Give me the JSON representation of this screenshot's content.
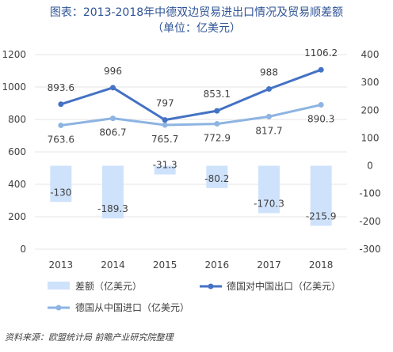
{
  "title": "图表：2013-2018年中德双边贸易进出口情况及贸易顺差额",
  "subtitle": "（单位：亿美元）",
  "source": "资料来源：欧盟统计局 前瞻产业研究院整理",
  "colors": {
    "title": "#2f5496",
    "bar": "#cfe2fc",
    "export_line": "#4472c4",
    "import_line": "#8db4e2",
    "text": "#404040",
    "grid": "#e4e4e4"
  },
  "chart_data": {
    "type": "bar+line",
    "categories": [
      "2013",
      "2014",
      "2015",
      "2016",
      "2017",
      "2018"
    ],
    "left_axis": {
      "min": 0,
      "max": 1200,
      "ticks": [
        0,
        200,
        400,
        600,
        800,
        1000,
        1200
      ]
    },
    "right_axis": {
      "min": -300,
      "max": 400,
      "ticks": [
        -300,
        -200,
        -100,
        0,
        100,
        200,
        300,
        400
      ]
    },
    "series": [
      {
        "name": "差额（亿美元）",
        "type": "bar",
        "axis": "right",
        "values": [
          -130,
          -189.3,
          -31.3,
          -80.2,
          -170.3,
          -215.9
        ],
        "labels": [
          "-130",
          "-189.3",
          "-31.3",
          "-80.2",
          "-170.3",
          "-215.9"
        ]
      },
      {
        "name": "德国对中国出口（亿美元）",
        "type": "line",
        "axis": "left",
        "values": [
          893.6,
          996,
          797,
          853.1,
          988,
          1106.2
        ],
        "labels": [
          "893.6",
          "996",
          "797",
          "853.1",
          "988",
          "1106.2"
        ]
      },
      {
        "name": "德国从中国进口（亿美元）",
        "type": "line",
        "axis": "left",
        "values": [
          763.6,
          806.7,
          765.7,
          772.9,
          817.7,
          890.3
        ],
        "labels": [
          "763.6",
          "806.7",
          "765.7",
          "772.9",
          "817.7",
          "890.3"
        ]
      }
    ],
    "legend_position": "bottom"
  }
}
